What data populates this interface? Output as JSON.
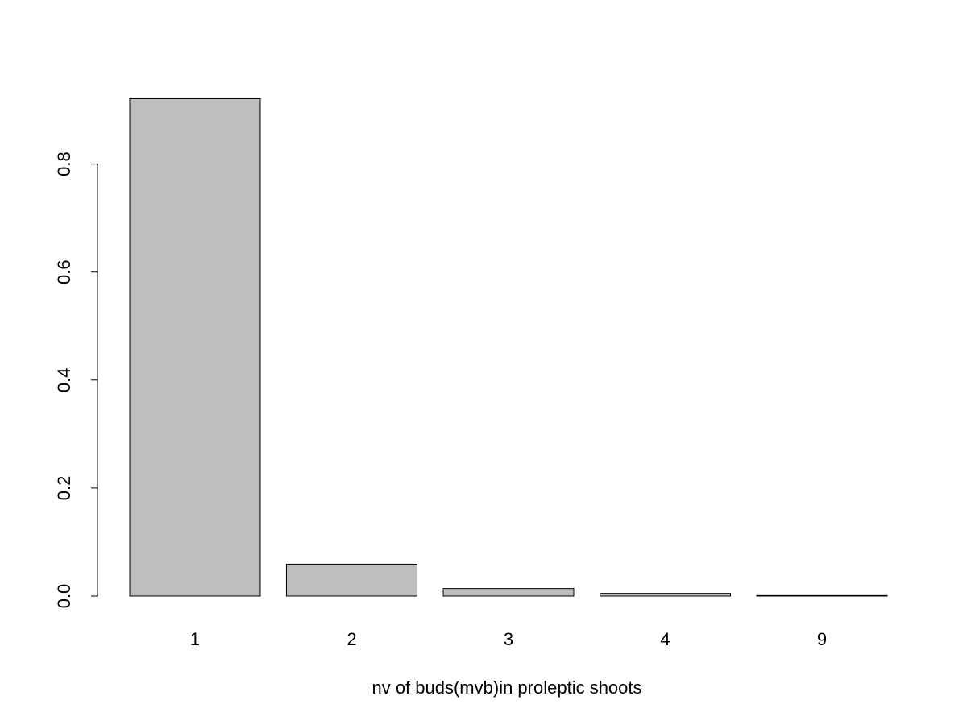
{
  "chart_data": {
    "type": "bar",
    "categories": [
      "1",
      "2",
      "3",
      "4",
      "9"
    ],
    "values": [
      0.921,
      0.059,
      0.014,
      0.005,
      0.001
    ],
    "title": "",
    "xlabel": "nv of buds(mvb)in proleptic shoots",
    "ylabel": "",
    "ylim": [
      0,
      0.92
    ],
    "yticks": [
      0.0,
      0.2,
      0.4,
      0.6,
      0.8
    ],
    "ytick_labels": [
      "0.0",
      "0.2",
      "0.4",
      "0.6",
      "0.8"
    ],
    "grid": false,
    "legend": "none",
    "bar_color": "#bebebe",
    "bar_edge_color": "#000000"
  }
}
